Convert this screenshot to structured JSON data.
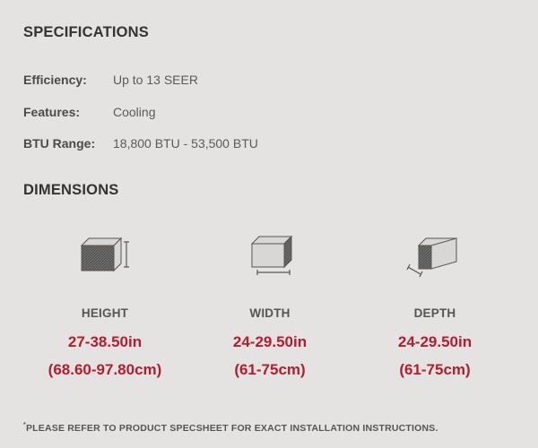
{
  "specifications": {
    "title": "SPECIFICATIONS",
    "rows": [
      {
        "label": "Efficiency:",
        "value": "Up to 13 SEER"
      },
      {
        "label": "Features:",
        "value": "Cooling"
      },
      {
        "label": "BTU Range:",
        "value": "18,800 BTU - 53,500 BTU"
      }
    ]
  },
  "dimensions": {
    "title": "DIMENSIONS",
    "items": [
      {
        "label": "HEIGHT",
        "inches": "27-38.50in",
        "cm": "(68.60-97.80cm)",
        "icon": "box-height-icon"
      },
      {
        "label": "WIDTH",
        "inches": "24-29.50in",
        "cm": "(61-75cm)",
        "icon": "box-width-icon"
      },
      {
        "label": "DEPTH",
        "inches": "24-29.50in",
        "cm": "(61-75cm)",
        "icon": "box-depth-icon"
      }
    ]
  },
  "footnote": {
    "marker": "*",
    "text": "PLEASE REFER TO PRODUCT SPECSHEET FOR EXACT INSTALLATION INSTRUCTIONS."
  },
  "colors": {
    "background": "#e5e3e1",
    "heading": "#333333",
    "accent_red": "#b01e2f"
  }
}
